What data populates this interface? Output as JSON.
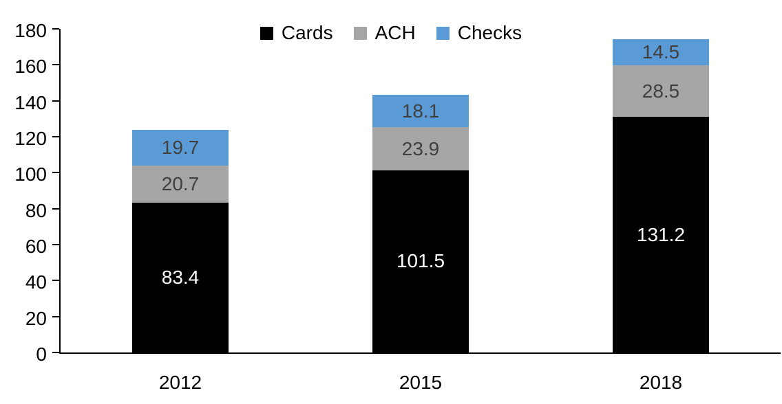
{
  "chart_data": {
    "type": "bar",
    "variant": "stacked-column",
    "title": "",
    "xlabel": "",
    "ylabel": "",
    "categories": [
      "2012",
      "2015",
      "2018"
    ],
    "series": [
      {
        "name": "Cards",
        "color": "#000000",
        "label_color": "#ffffff",
        "values": [
          83.4,
          101.5,
          131.2
        ]
      },
      {
        "name": "ACH",
        "color": "#A6A6A6",
        "label_color": "#404040",
        "values": [
          20.7,
          23.9,
          28.5
        ]
      },
      {
        "name": "Checks",
        "color": "#5B9BD5",
        "label_color": "#404040",
        "values": [
          19.7,
          18.1,
          14.5
        ]
      }
    ],
    "stack_totals": [
      123.8,
      143.5,
      174.2
    ],
    "ylim": [
      0,
      180
    ],
    "ytick_step": 20,
    "yticks": [
      0,
      20,
      40,
      60,
      80,
      100,
      120,
      140,
      160,
      180
    ],
    "grid": false,
    "legend_position": "top-center",
    "axis_color": "#000000",
    "background_color": "#ffffff"
  }
}
